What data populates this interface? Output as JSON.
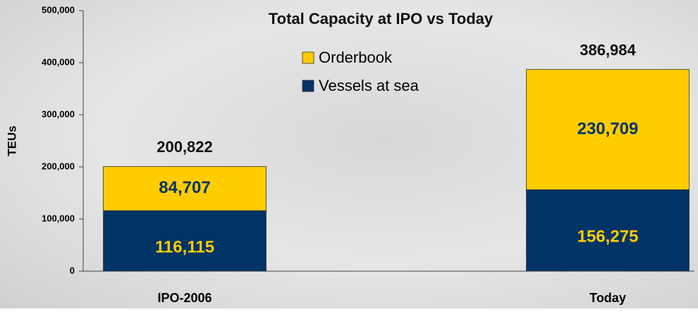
{
  "chart_data": {
    "type": "stacked_bar",
    "title": "Total Capacity at IPO vs Today",
    "y_label": "TEUs",
    "categories": [
      "IPO-2006",
      "Today"
    ],
    "series": [
      {
        "name": "Vessels at sea",
        "color": "#003366",
        "label_color": "#ffcc00",
        "values": [
          116115,
          156275
        ],
        "value_labels": [
          "116,115",
          "156,275"
        ]
      },
      {
        "name": "Orderbook",
        "color": "#ffcc00",
        "label_color": "#003366",
        "values": [
          84707,
          230709
        ],
        "value_labels": [
          "84,707",
          "230,709"
        ]
      }
    ],
    "total_labels": [
      "200,822",
      "386,984"
    ],
    "ylim": [
      0,
      500000
    ],
    "yticks": [
      {
        "value": 0,
        "label": "0"
      },
      {
        "value": 100000,
        "label": "100,000"
      },
      {
        "value": 200000,
        "label": "200,000"
      },
      {
        "value": 300000,
        "label": "300,000"
      },
      {
        "value": 400000,
        "label": "400,000"
      },
      {
        "value": 500000,
        "label": "500,000"
      }
    ],
    "legend": "top-center"
  }
}
